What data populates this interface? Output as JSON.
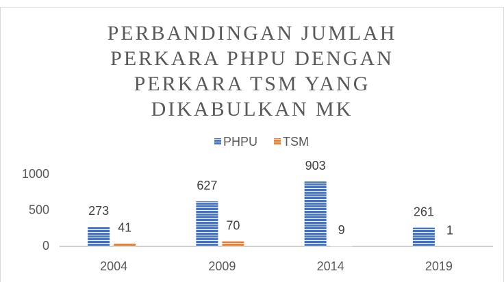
{
  "chart_data": {
    "type": "bar",
    "title": "PERBANDINGAN JUMLAH PERKARA PHPU DENGAN PERKARA TSM YANG DIKABULKAN MK",
    "categories": [
      "2004",
      "2009",
      "2014",
      "2019"
    ],
    "series": [
      {
        "name": "PHPU",
        "color": "#4472c4",
        "values": [
          273,
          627,
          903,
          261
        ]
      },
      {
        "name": "TSM",
        "color": "#ed7d31",
        "values": [
          41,
          70,
          9,
          1
        ]
      }
    ],
    "ylim": [
      0,
      1000
    ],
    "yticks": [
      0,
      500,
      1000
    ],
    "grid": false,
    "legend": "top"
  }
}
